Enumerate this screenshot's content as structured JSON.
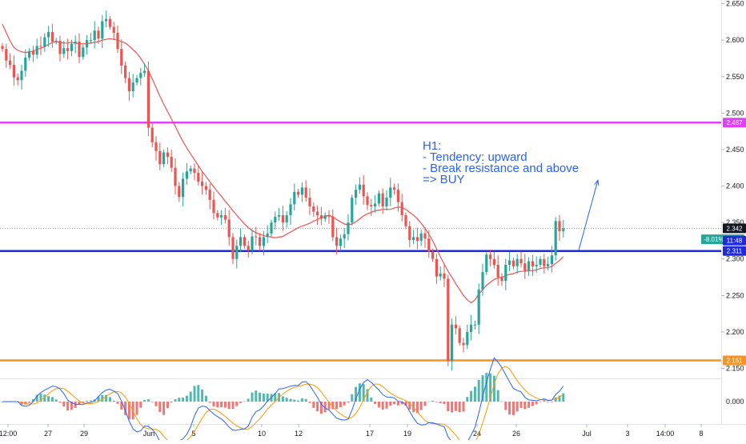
{
  "chart_data": {
    "type": "candlestick",
    "title": "",
    "timeframe_note": {
      "lines": [
        "H1:",
        "- Tendency: upward",
        "- Break resistance and above",
        "=> BUY"
      ]
    },
    "x_tick_labels": [
      "12:00",
      "27",
      "29",
      "Jun",
      "5",
      "10",
      "12",
      "17",
      "19",
      "24",
      "26",
      "Jul",
      "3",
      "14:00",
      "8"
    ],
    "y_ticks": [
      "2.650",
      "2.600",
      "2.550",
      "2.500",
      "2.450",
      "2.400",
      "2.350",
      "2.300",
      "2.250",
      "2.200",
      "2.150"
    ],
    "ylim": [
      2.144,
      2.655
    ],
    "grid": false,
    "price_close": [
      2.588,
      2.572,
      2.566,
      2.549,
      2.545,
      2.558,
      2.576,
      2.585,
      2.58,
      2.592,
      2.591,
      2.604,
      2.611,
      2.598,
      2.599,
      2.581,
      2.589,
      2.585,
      2.595,
      2.598,
      2.577,
      2.59,
      2.6,
      2.6,
      2.613,
      2.602,
      2.626,
      2.629,
      2.618,
      2.61,
      2.588,
      2.565,
      2.548,
      2.53,
      2.542,
      2.548,
      2.555,
      2.558,
      2.48,
      2.46,
      2.448,
      2.43,
      2.446,
      2.44,
      2.425,
      2.4,
      2.385,
      2.41,
      2.42,
      2.424,
      2.418,
      2.406,
      2.4,
      2.395,
      2.381,
      2.363,
      2.357,
      2.36,
      2.354,
      2.33,
      2.3,
      2.318,
      2.33,
      2.318,
      2.312,
      2.331,
      2.33,
      2.318,
      2.33,
      2.335,
      2.35,
      2.358,
      2.36,
      2.35,
      2.36,
      2.375,
      2.392,
      2.388,
      2.398,
      2.384,
      2.372,
      2.365,
      2.36,
      2.355,
      2.36,
      2.358,
      2.33,
      2.318,
      2.328,
      2.334,
      2.35,
      2.384,
      2.395,
      2.402,
      2.386,
      2.374,
      2.372,
      2.376,
      2.39,
      2.372,
      2.384,
      2.398,
      2.395,
      2.378,
      2.36,
      2.345,
      2.326,
      2.33,
      2.325,
      2.335,
      2.328,
      2.31,
      2.3,
      2.276,
      2.28,
      2.273,
      2.16,
      2.21,
      2.205,
      2.185,
      2.182,
      2.2,
      2.21,
      2.21,
      2.258,
      2.282,
      2.306,
      2.3,
      2.292,
      2.275,
      2.27,
      2.292,
      2.298,
      2.29,
      2.3,
      2.294,
      2.284,
      2.297,
      2.29,
      2.292,
      2.3,
      2.29,
      2.293,
      2.305,
      2.352,
      2.338,
      2.342
    ],
    "ma_line": [
      2.622,
      2.61,
      2.599,
      2.59,
      2.586,
      2.584,
      2.583,
      2.584,
      2.585,
      2.587,
      2.589,
      2.591,
      2.594,
      2.597,
      2.598,
      2.597,
      2.596,
      2.596,
      2.597,
      2.596,
      2.595,
      2.595,
      2.595,
      2.596,
      2.597,
      2.598,
      2.6,
      2.601,
      2.602,
      2.601,
      2.6,
      2.598,
      2.596,
      2.592,
      2.587,
      2.582,
      2.575,
      2.567,
      2.558,
      2.547,
      2.535,
      2.523,
      2.512,
      2.502,
      2.492,
      2.482,
      2.471,
      2.461,
      2.452,
      2.444,
      2.436,
      2.428,
      2.42,
      2.413,
      2.406,
      2.399,
      2.392,
      2.386,
      2.379,
      2.373,
      2.366,
      2.36,
      2.354,
      2.348,
      2.343,
      2.339,
      2.336,
      2.334,
      2.332,
      2.331,
      2.33,
      2.329,
      2.33,
      2.331,
      2.334,
      2.337,
      2.34,
      2.343,
      2.345,
      2.347,
      2.349,
      2.352,
      2.354,
      2.357,
      2.358,
      2.36,
      2.358,
      2.354,
      2.351,
      2.348,
      2.347,
      2.348,
      2.351,
      2.355,
      2.359,
      2.362,
      2.364,
      2.366,
      2.367,
      2.368,
      2.368,
      2.368,
      2.37,
      2.371,
      2.371,
      2.368,
      2.364,
      2.36,
      2.355,
      2.349,
      2.342,
      2.334,
      2.325,
      2.314,
      2.303,
      2.293,
      2.283,
      2.275,
      2.266,
      2.258,
      2.25,
      2.244,
      2.24,
      2.244,
      2.252,
      2.258,
      2.264,
      2.268,
      2.272,
      2.274,
      2.275,
      2.277,
      2.279,
      2.28,
      2.282,
      2.283,
      2.283,
      2.284,
      2.284,
      2.285,
      2.287,
      2.288,
      2.288,
      2.29,
      2.294,
      2.298,
      2.303
    ],
    "horizontal_levels": [
      {
        "label": "2.487",
        "value": 2.487,
        "color": "#e040fb"
      },
      {
        "label": "2.311",
        "value": 2.311,
        "color": "#1f2bd8"
      },
      {
        "label": "2.161",
        "value": 2.161,
        "color": "#f7931e"
      }
    ],
    "current_price": {
      "label": "2.342",
      "value": 2.342,
      "color": "#5d606b"
    },
    "price_tag_color": "#131722",
    "change_badge": {
      "pct": "-8.01%",
      "price": "2.342",
      "color": "#26a69a"
    },
    "countdown": "11:48",
    "resistance_break_arrow": {
      "from": {
        "candle_index": 150,
        "price": 2.312
      },
      "to": {
        "candle_index": 155,
        "price": 2.408
      },
      "color": "#2962ff"
    },
    "indicator": {
      "y_ticks": [
        "0.000"
      ],
      "ylim": [
        -0.025,
        0.025
      ],
      "line_colors": {
        "macd": "#2962ff",
        "signal": "#ff9800"
      },
      "histogram_colors": {
        "up": "#26a69a",
        "down": "#ef5350"
      }
    },
    "colors": {
      "up": "#26a69a",
      "down": "#ef5350",
      "ma": "#ef5350",
      "axis": "#131722"
    }
  }
}
